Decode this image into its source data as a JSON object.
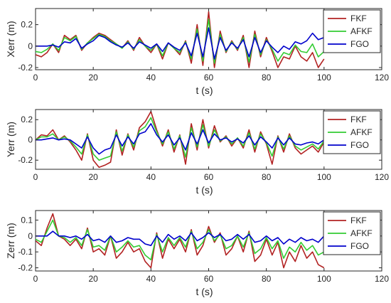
{
  "chart_data": [
    {
      "type": "line",
      "ylabel": "Xerr (m)",
      "xlabel": "t (s)",
      "xlim": [
        0,
        120
      ],
      "ylim": [
        -0.22,
        0.35
      ],
      "xticks": [
        0,
        20,
        40,
        60,
        80,
        100,
        120
      ],
      "yticks": [
        -0.2,
        0,
        0.2
      ],
      "ytick_labels": [
        "-0.2",
        "0",
        "0.2"
      ],
      "legend_position": "top-right",
      "x": [
        0,
        2,
        4,
        6,
        8,
        10,
        12,
        14,
        16,
        18,
        20,
        22,
        24,
        26,
        28,
        30,
        32,
        34,
        36,
        38,
        40,
        42,
        44,
        46,
        48,
        50,
        52,
        54,
        56,
        58,
        60,
        62,
        64,
        66,
        68,
        70,
        72,
        74,
        76,
        78,
        80,
        82,
        84,
        86,
        88,
        90,
        92,
        94,
        96,
        98,
        100
      ],
      "series": [
        {
          "name": "FKF",
          "color": "#b22222",
          "values": [
            -0.08,
            -0.1,
            -0.06,
            0.02,
            -0.06,
            0.1,
            0.06,
            0.1,
            -0.04,
            0.03,
            0.08,
            0.12,
            0.1,
            0.06,
            0.02,
            -0.02,
            0.05,
            -0.04,
            0.08,
            0.0,
            -0.06,
            0.02,
            -0.12,
            0.03,
            -0.02,
            -0.08,
            0.05,
            -0.16,
            0.2,
            -0.18,
            0.32,
            -0.2,
            0.14,
            -0.06,
            0.05,
            -0.04,
            0.1,
            -0.2,
            0.14,
            -0.1,
            0.08,
            -0.05,
            -0.2,
            -0.1,
            -0.12,
            0.0,
            -0.1,
            -0.14,
            -0.06,
            -0.2,
            -0.12
          ]
        },
        {
          "name": "AFKF",
          "color": "#33cc33",
          "values": [
            -0.05,
            -0.06,
            -0.03,
            0.02,
            -0.04,
            0.08,
            0.05,
            0.09,
            -0.03,
            0.03,
            0.07,
            0.11,
            0.09,
            0.05,
            0.02,
            -0.02,
            0.04,
            -0.03,
            0.06,
            0.0,
            -0.04,
            0.02,
            -0.09,
            0.03,
            -0.02,
            -0.06,
            0.04,
            -0.12,
            0.16,
            -0.14,
            0.25,
            -0.16,
            0.11,
            -0.05,
            0.04,
            -0.03,
            0.08,
            -0.15,
            0.11,
            -0.08,
            0.06,
            -0.03,
            -0.14,
            -0.06,
            -0.08,
            0.01,
            -0.05,
            -0.06,
            0.02,
            -0.1,
            -0.05
          ]
        },
        {
          "name": "FGO",
          "color": "#0000cc",
          "values": [
            0.0,
            0.0,
            0.0,
            0.01,
            -0.01,
            0.04,
            0.03,
            0.07,
            -0.02,
            0.02,
            0.05,
            0.1,
            0.08,
            0.04,
            0.01,
            -0.01,
            0.03,
            -0.02,
            0.04,
            0.01,
            -0.02,
            0.02,
            -0.05,
            0.03,
            -0.01,
            -0.04,
            0.03,
            -0.09,
            0.12,
            -0.1,
            0.17,
            -0.12,
            0.08,
            -0.04,
            0.03,
            -0.02,
            0.06,
            -0.1,
            0.08,
            -0.06,
            0.05,
            -0.01,
            -0.06,
            0.0,
            -0.03,
            0.04,
            0.02,
            0.05,
            0.12,
            0.06,
            0.08
          ]
        }
      ]
    },
    {
      "type": "line",
      "ylabel": "Yerr (m)",
      "xlabel": "t (s)",
      "xlim": [
        0,
        120
      ],
      "ylim": [
        -0.29,
        0.3
      ],
      "xticks": [
        0,
        20,
        40,
        60,
        80,
        100,
        120
      ],
      "yticks": [
        -0.2,
        0,
        0.2
      ],
      "ytick_labels": [
        "-0.2",
        "0",
        "0.2"
      ],
      "legend_position": "top-right",
      "x": [
        0,
        2,
        4,
        6,
        8,
        10,
        12,
        14,
        16,
        18,
        20,
        22,
        24,
        26,
        28,
        30,
        32,
        34,
        36,
        38,
        40,
        42,
        44,
        46,
        48,
        50,
        52,
        54,
        56,
        58,
        60,
        62,
        64,
        66,
        68,
        70,
        72,
        74,
        76,
        78,
        80,
        82,
        84,
        86,
        88,
        90,
        92,
        94,
        96,
        98,
        100
      ],
      "series": [
        {
          "name": "FKF",
          "color": "#b22222",
          "values": [
            0.0,
            0.05,
            0.04,
            0.1,
            0.0,
            0.04,
            -0.02,
            -0.1,
            -0.2,
            0.06,
            -0.2,
            -0.27,
            -0.25,
            -0.22,
            0.1,
            -0.15,
            0.06,
            -0.1,
            0.12,
            0.18,
            0.28,
            0.1,
            -0.06,
            0.1,
            -0.12,
            0.05,
            -0.24,
            0.16,
            -0.1,
            0.2,
            -0.08,
            0.14,
            -0.02,
            0.04,
            -0.06,
            0.02,
            -0.08,
            0.1,
            -0.12,
            0.08,
            -0.04,
            -0.24,
            0.04,
            -0.12,
            0.06,
            -0.08,
            -0.14,
            -0.1,
            -0.06,
            -0.12,
            -0.02
          ]
        },
        {
          "name": "AFKF",
          "color": "#33cc33",
          "values": [
            0.0,
            0.03,
            0.03,
            0.06,
            0.0,
            0.03,
            -0.01,
            -0.07,
            -0.14,
            0.05,
            -0.14,
            -0.2,
            -0.18,
            -0.16,
            0.08,
            -0.11,
            0.05,
            -0.07,
            0.09,
            0.13,
            0.22,
            0.08,
            -0.04,
            0.08,
            -0.09,
            0.04,
            -0.17,
            0.12,
            -0.07,
            0.15,
            -0.06,
            0.1,
            -0.01,
            0.03,
            -0.04,
            0.02,
            -0.06,
            0.07,
            -0.09,
            0.06,
            -0.03,
            -0.16,
            0.03,
            -0.09,
            0.04,
            -0.06,
            -0.1,
            -0.07,
            -0.04,
            -0.09,
            -0.01
          ]
        },
        {
          "name": "FGO",
          "color": "#0000cc",
          "values": [
            0.0,
            0.0,
            0.01,
            0.02,
            0.0,
            0.01,
            0.0,
            -0.04,
            -0.08,
            0.03,
            -0.08,
            -0.14,
            -0.1,
            -0.08,
            0.05,
            -0.06,
            0.03,
            -0.04,
            0.06,
            0.08,
            0.16,
            0.05,
            -0.02,
            0.05,
            -0.05,
            0.02,
            -0.1,
            0.07,
            -0.04,
            0.1,
            -0.03,
            0.06,
            0.0,
            0.02,
            -0.02,
            0.01,
            -0.03,
            0.04,
            -0.05,
            0.03,
            -0.02,
            -0.08,
            0.02,
            -0.05,
            0.02,
            -0.04,
            -0.05,
            -0.03,
            -0.02,
            -0.04,
            0.0
          ]
        }
      ]
    },
    {
      "type": "line",
      "ylabel": "Zerr (m)",
      "xlabel": "t (s)",
      "xlim": [
        0,
        120
      ],
      "ylim": [
        -0.22,
        0.16
      ],
      "xticks": [
        0,
        20,
        40,
        60,
        80,
        100,
        120
      ],
      "yticks": [
        -0.2,
        -0.1,
        0,
        0.1
      ],
      "ytick_labels": [
        "-0.2",
        "-0.1",
        "0",
        "0.1"
      ],
      "legend_position": "top-right",
      "x": [
        0,
        2,
        4,
        6,
        8,
        10,
        12,
        14,
        16,
        18,
        20,
        22,
        24,
        26,
        28,
        30,
        32,
        34,
        36,
        38,
        40,
        42,
        44,
        46,
        48,
        50,
        52,
        54,
        56,
        58,
        60,
        62,
        64,
        66,
        68,
        70,
        72,
        74,
        76,
        78,
        80,
        82,
        84,
        86,
        88,
        90,
        92,
        94,
        96,
        98,
        100
      ],
      "series": [
        {
          "name": "FKF",
          "color": "#b22222",
          "values": [
            -0.03,
            -0.06,
            0.05,
            0.14,
            0.0,
            -0.02,
            -0.06,
            -0.02,
            -0.08,
            0.05,
            -0.1,
            -0.08,
            -0.12,
            0.0,
            -0.14,
            -0.1,
            -0.04,
            -0.1,
            -0.08,
            -0.16,
            -0.2,
            0.02,
            -0.14,
            -0.02,
            -0.08,
            -0.02,
            -0.1,
            0.04,
            -0.12,
            -0.06,
            0.06,
            -0.04,
            0.02,
            -0.12,
            -0.08,
            0.0,
            -0.1,
            0.03,
            -0.16,
            -0.12,
            -0.02,
            -0.12,
            -0.04,
            -0.2,
            -0.1,
            -0.16,
            -0.06,
            -0.14,
            -0.1,
            -0.18,
            -0.2
          ]
        },
        {
          "name": "AFKF",
          "color": "#33cc33",
          "values": [
            -0.02,
            -0.04,
            0.03,
            0.1,
            0.0,
            -0.01,
            -0.04,
            -0.01,
            -0.06,
            0.04,
            -0.07,
            -0.06,
            -0.09,
            0.0,
            -0.1,
            -0.07,
            -0.03,
            -0.07,
            -0.06,
            -0.12,
            -0.15,
            0.01,
            -0.1,
            -0.01,
            -0.06,
            -0.01,
            -0.07,
            0.03,
            -0.08,
            -0.04,
            0.04,
            -0.03,
            0.01,
            -0.08,
            -0.06,
            0.0,
            -0.07,
            0.02,
            -0.11,
            -0.08,
            -0.01,
            -0.08,
            -0.03,
            -0.14,
            -0.07,
            -0.1,
            -0.04,
            -0.09,
            -0.06,
            -0.12,
            -0.1
          ]
        },
        {
          "name": "FGO",
          "color": "#0000cc",
          "values": [
            0.0,
            0.0,
            0.0,
            0.03,
            0.0,
            0.0,
            -0.01,
            0.0,
            -0.02,
            0.01,
            -0.03,
            -0.02,
            -0.04,
            0.0,
            -0.04,
            -0.03,
            -0.01,
            -0.02,
            -0.02,
            -0.05,
            -0.06,
            0.0,
            -0.04,
            0.01,
            -0.02,
            0.0,
            -0.03,
            0.02,
            -0.03,
            -0.01,
            0.02,
            -0.01,
            0.01,
            -0.03,
            -0.02,
            0.01,
            -0.02,
            0.01,
            -0.04,
            -0.03,
            0.0,
            -0.03,
            -0.01,
            -0.05,
            -0.02,
            -0.04,
            -0.01,
            -0.03,
            -0.02,
            -0.04,
            0.0
          ]
        }
      ]
    }
  ]
}
